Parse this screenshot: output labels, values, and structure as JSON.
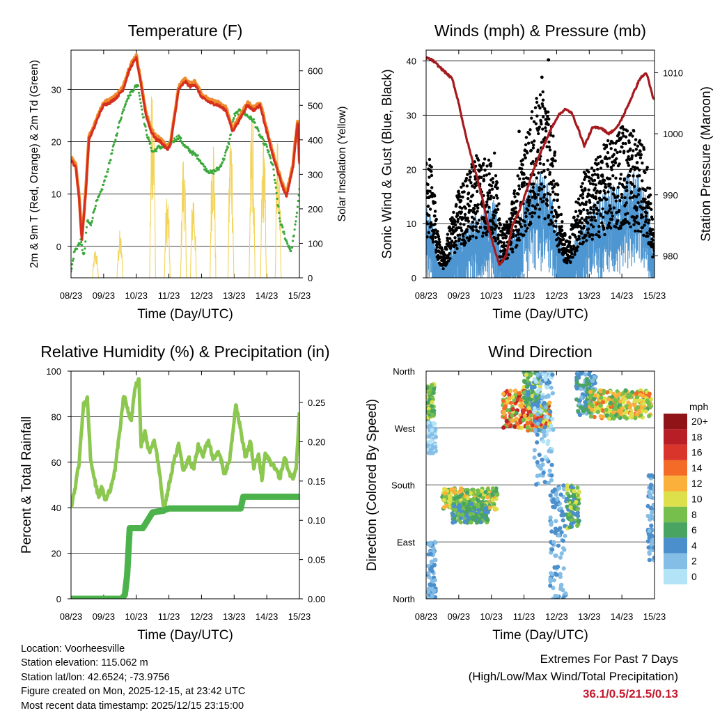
{
  "colors": {
    "temp2m": "#d62f1f",
    "temp9m": "#f08a2a",
    "dewpoint": "#3aa83a",
    "insolation": "#f3d45a",
    "wind": "#000000",
    "gust_sonic": "#4d96d1",
    "pressure": "#a61a1f",
    "rh": "#8cc850",
    "precip": "#4cb34c",
    "extreme_values": "#c3182d",
    "speed_bins": [
      "#b3e3f7",
      "#84bde6",
      "#4b8fcc",
      "#4aa461",
      "#77bf4d",
      "#dde04a",
      "#fbb03b",
      "#f36b27",
      "#d9352a",
      "#b81e26",
      "#8f1317"
    ]
  },
  "time_ticks": [
    "08/23",
    "09/23",
    "10/23",
    "11/23",
    "12/23",
    "13/23",
    "14/23",
    "15/23"
  ],
  "chart_data": [
    {
      "id": "temperature",
      "type": "line",
      "title": "Temperature (F)",
      "xlabel": "Time (Day/UTC)",
      "ylabel": "2m & 9m T (Red, Orange) & 2m Td (Green)",
      "ylabel_right": "Solar Insolation (Yellow)",
      "xlim": [
        0,
        7
      ],
      "ylim": [
        -6,
        37.5
      ],
      "ylim_right": [
        0,
        660
      ],
      "yticks": [
        "0",
        "10",
        "20",
        "30"
      ],
      "yticks_right": [
        "0",
        "100",
        "200",
        "300",
        "400",
        "500",
        "600"
      ],
      "series": [
        {
          "name": "2m T",
          "axis": "left",
          "color_key": "temp2m",
          "width": 3.2,
          "x": [
            0,
            0.15,
            0.25,
            0.33,
            0.45,
            0.55,
            0.7,
            0.85,
            1.0,
            1.2,
            1.4,
            1.6,
            1.75,
            1.85,
            2.0,
            2.1,
            2.3,
            2.45,
            2.6,
            2.75,
            2.95,
            3.05,
            3.3,
            3.5,
            3.65,
            3.8,
            4.0,
            4.25,
            4.5,
            4.75,
            4.95,
            5.15,
            5.4,
            5.6,
            5.8,
            5.95,
            6.2,
            6.45,
            6.6,
            6.8,
            6.95,
            7.0
          ],
          "y": [
            16.5,
            15,
            9,
            1,
            10,
            20.5,
            22.5,
            25,
            27,
            27.5,
            28.5,
            30,
            33,
            34.5,
            36,
            32.5,
            25,
            22,
            20.5,
            20,
            18.5,
            19.5,
            30,
            31.5,
            30.5,
            31,
            28.5,
            27.5,
            27,
            26,
            22,
            24,
            27,
            26,
            27,
            23,
            17,
            12,
            9.5,
            15,
            24,
            16
          ]
        },
        {
          "name": "9m T",
          "axis": "left",
          "color_key": "temp9m",
          "width": 1.2,
          "x": [
            0,
            0.15,
            0.25,
            0.33,
            0.45,
            0.55,
            0.7,
            0.85,
            1.0,
            1.2,
            1.4,
            1.6,
            1.75,
            1.85,
            2.0,
            2.1,
            2.3,
            2.45,
            2.6,
            2.75,
            2.95,
            3.05,
            3.3,
            3.5,
            3.65,
            3.8,
            4.0,
            4.25,
            4.5,
            4.75,
            4.95,
            5.15,
            5.4,
            5.6,
            5.8,
            5.95,
            6.2,
            6.45,
            6.6,
            6.8,
            6.95,
            7.0
          ],
          "y": [
            17,
            15.5,
            9.5,
            1.5,
            10.5,
            21,
            23,
            25.5,
            27.5,
            28,
            29,
            30.5,
            33.5,
            35,
            36.5,
            33,
            25.5,
            22.5,
            21,
            20.5,
            19,
            20,
            30.5,
            32,
            31,
            31.5,
            29,
            28,
            27.5,
            26.5,
            22.5,
            24.5,
            27.5,
            26.5,
            27.5,
            23.5,
            17.5,
            12.5,
            10,
            15.5,
            24.5,
            16.5
          ]
        },
        {
          "name": "2m Td",
          "axis": "left",
          "color_key": "dewpoint",
          "width": 2.5,
          "x": [
            0,
            0.1,
            0.2,
            0.3,
            0.4,
            0.5,
            0.6,
            0.75,
            0.9,
            1.1,
            1.3,
            1.5,
            1.7,
            1.9,
            2.05,
            2.15,
            2.3,
            2.5,
            2.7,
            2.9,
            3.1,
            3.3,
            3.5,
            3.7,
            3.9,
            4.1,
            4.3,
            4.55,
            4.7,
            4.85,
            5.0,
            5.2,
            5.4,
            5.6,
            5.8,
            6.0,
            6.2,
            6.4,
            6.6,
            6.75,
            6.9,
            7.0
          ],
          "y": [
            -5,
            -1,
            0,
            1,
            -2,
            5,
            4,
            8,
            10,
            14,
            19,
            24,
            28,
            30,
            31,
            27,
            22,
            18,
            19,
            19,
            20,
            21,
            19,
            18,
            17,
            15,
            14,
            15,
            17,
            20,
            25,
            26,
            25,
            24,
            21,
            19,
            15,
            5,
            1,
            -1,
            5,
            11
          ]
        },
        {
          "name": "Solar Insolation",
          "axis": "right",
          "color_key": "insolation",
          "width": 1.1,
          "kind": "spikes",
          "peaks": [
            [
              0.75,
              90
            ],
            [
              1.5,
              140
            ],
            [
              2.5,
              660
            ],
            [
              2.95,
              260
            ],
            [
              3.45,
              390
            ],
            [
              3.75,
              280
            ],
            [
              4.35,
              460
            ],
            [
              4.9,
              470
            ],
            [
              5.55,
              500
            ],
            [
              5.9,
              440
            ],
            [
              6.35,
              470
            ]
          ]
        }
      ]
    },
    {
      "id": "winds",
      "type": "scatter",
      "title": "Winds (mph) & Pressure (mb)",
      "xlabel": "Time (Day/UTC)",
      "ylabel": "Sonic Wind & Gust (Blue, Black)",
      "ylabel_right": "Station Pressure (Maroon)",
      "xlim": [
        0,
        7
      ],
      "ylim": [
        0,
        42
      ],
      "ylim_right": [
        976.4,
        1013.7
      ],
      "yticks": [
        "0",
        "10",
        "20",
        "30",
        "40"
      ],
      "yticks_right": [
        "980",
        "990",
        "1000",
        "1010"
      ],
      "sonic_wind_envelope": {
        "x": [
          0,
          0.2,
          0.35,
          0.55,
          0.75,
          1.0,
          1.3,
          1.6,
          1.9,
          2.1,
          2.3,
          2.5,
          2.75,
          3.0,
          3.25,
          3.5,
          3.7,
          3.9,
          4.1,
          4.35,
          4.6,
          4.85,
          5.1,
          5.4,
          5.7,
          5.95,
          6.2,
          6.45,
          6.7,
          6.85,
          7.0
        ],
        "y": [
          12,
          9,
          3,
          2,
          5,
          7,
          9,
          11,
          12,
          13,
          4,
          5,
          8,
          12,
          16,
          17,
          16,
          12,
          6,
          3,
          7,
          10,
          12,
          14,
          15,
          16,
          17,
          18,
          14,
          10,
          4
        ]
      },
      "gust_envelope": {
        "x": [
          0,
          0.2,
          0.35,
          0.55,
          0.75,
          1.0,
          1.3,
          1.6,
          1.9,
          2.1,
          2.3,
          2.5,
          2.75,
          3.0,
          3.25,
          3.5,
          3.7,
          3.9,
          4.1,
          4.35,
          4.6,
          4.85,
          5.1,
          5.4,
          5.7,
          5.95,
          6.2,
          6.45,
          6.7,
          6.85,
          7.0
        ],
        "y": [
          22,
          18,
          8,
          4,
          10,
          15,
          18,
          22,
          20,
          21,
          8,
          10,
          16,
          22,
          28,
          32,
          30,
          24,
          12,
          6,
          13,
          18,
          19,
          22,
          24,
          26,
          26,
          24,
          22,
          16,
          6
        ]
      },
      "max_gust_points": [
        [
          3.75,
          40.2
        ],
        [
          3.55,
          37
        ],
        [
          2.85,
          27
        ]
      ],
      "pressure": {
        "x": [
          0,
          0.2,
          0.4,
          0.6,
          0.8,
          1.0,
          1.2,
          1.45,
          1.7,
          1.9,
          2.1,
          2.25,
          2.45,
          2.65,
          2.9,
          3.1,
          3.35,
          3.6,
          3.85,
          4.05,
          4.25,
          4.45,
          4.65,
          4.85,
          5.1,
          5.35,
          5.6,
          5.85,
          6.05,
          6.3,
          6.55,
          6.75,
          6.85,
          6.95,
          7.0
        ],
        "y": [
          1012.5,
          1012,
          1011,
          1010,
          1009,
          1005,
          1000,
          995,
          990,
          985,
          981,
          978.5,
          980,
          985,
          988,
          991,
          995,
          998,
          1001,
          1003,
          1004,
          1003.5,
          1001,
          998,
          1001,
          1001,
          1000,
          1001,
          1003,
          1006,
          1009,
          1010,
          1008,
          1006,
          1005.5
        ]
      }
    },
    {
      "id": "humidity",
      "type": "line",
      "title": "Relative Humidity (%) & Precipitation (in)",
      "xlabel": "Time (Day/UTC)",
      "ylabel": "Percent & Total Rainfall",
      "xlim": [
        0,
        7
      ],
      "ylim": [
        0,
        100
      ],
      "ylim_right": [
        0,
        0.29
      ],
      "yticks": [
        "0",
        "20",
        "40",
        "60",
        "80",
        "100"
      ],
      "yticks_right": [
        "0.00",
        "0.05",
        "0.10",
        "0.15",
        "0.20",
        "0.25"
      ],
      "series": [
        {
          "name": "Relative Humidity",
          "axis": "left",
          "color_key": "rh",
          "width": 5,
          "x": [
            0,
            0.12,
            0.25,
            0.38,
            0.5,
            0.6,
            0.75,
            0.85,
            0.95,
            1.05,
            1.2,
            1.35,
            1.5,
            1.62,
            1.75,
            1.85,
            1.95,
            2.08,
            2.15,
            2.25,
            2.4,
            2.55,
            2.7,
            2.85,
            3.0,
            3.15,
            3.3,
            3.45,
            3.6,
            3.75,
            3.9,
            4.05,
            4.2,
            4.35,
            4.55,
            4.7,
            4.85,
            4.95,
            5.05,
            5.2,
            5.35,
            5.5,
            5.6,
            5.75,
            5.85,
            5.95,
            6.1,
            6.25,
            6.4,
            6.55,
            6.7,
            6.8,
            6.9,
            7.0
          ],
          "y": [
            40,
            48,
            60,
            85,
            88,
            62,
            50,
            45,
            49,
            43,
            48,
            57,
            74,
            90,
            82,
            78,
            92,
            97,
            66,
            74,
            64,
            70,
            57,
            38,
            50,
            60,
            68,
            56,
            62,
            57,
            67,
            63,
            70,
            62,
            64,
            55,
            60,
            72,
            86,
            74,
            62,
            69,
            58,
            63,
            52,
            64,
            60,
            58,
            53,
            62,
            55,
            53,
            58,
            82
          ]
        },
        {
          "name": "Total Precipitation",
          "axis": "right",
          "color_key": "precip",
          "width": 9,
          "step": true,
          "x": [
            0,
            1.55,
            1.65,
            1.72,
            1.8,
            2.0,
            2.2,
            2.35,
            2.5,
            2.8,
            3.0,
            3.3,
            4.1,
            5.2,
            5.28,
            6.2,
            7.0
          ],
          "y": [
            0,
            0,
            0.005,
            0.03,
            0.09,
            0.09,
            0.09,
            0.1,
            0.11,
            0.112,
            0.115,
            0.115,
            0.115,
            0.115,
            0.13,
            0.13,
            0.13
          ]
        }
      ]
    },
    {
      "id": "direction",
      "type": "scatter",
      "title": "Wind Direction",
      "xlabel": "Time (Day/UTC)",
      "ylabel": "Direction (Colored By Speed)",
      "xlim": [
        0,
        7
      ],
      "ylim": [
        0,
        360
      ],
      "yticks": [
        "North",
        "East",
        "South",
        "West",
        "North"
      ],
      "clusters": [
        {
          "x": [
            0.0,
            0.25
          ],
          "y": [
            280,
            340
          ],
          "speed": [
            5,
            10
          ]
        },
        {
          "x": [
            0.05,
            0.3
          ],
          "y": [
            230,
            280
          ],
          "speed": [
            0,
            3
          ]
        },
        {
          "x": [
            0.05,
            0.3
          ],
          "y": [
            0,
            90
          ],
          "speed": [
            1,
            4
          ]
        },
        {
          "x": [
            0.5,
            2.2
          ],
          "y": [
            140,
            175
          ],
          "speed": [
            5,
            13
          ]
        },
        {
          "x": [
            0.8,
            1.9
          ],
          "y": [
            120,
            150
          ],
          "speed": [
            3,
            9
          ]
        },
        {
          "x": [
            2.35,
            3.1
          ],
          "y": [
            270,
            330
          ],
          "speed": [
            6,
            18
          ]
        },
        {
          "x": [
            3.1,
            3.8
          ],
          "y": [
            265,
            310
          ],
          "speed": [
            7,
            17
          ]
        },
        {
          "x": [
            3.0,
            3.5
          ],
          "y": [
            300,
            360
          ],
          "speed": [
            3,
            10
          ]
        },
        {
          "x": [
            3.3,
            3.9
          ],
          "y": [
            180,
            360
          ],
          "speed": [
            0,
            4
          ]
        },
        {
          "x": [
            3.8,
            4.3
          ],
          "y": [
            0,
            180
          ],
          "speed": [
            1,
            5
          ]
        },
        {
          "x": [
            4.3,
            4.7
          ],
          "y": [
            110,
            180
          ],
          "speed": [
            4,
            10
          ]
        },
        {
          "x": [
            4.6,
            5.2
          ],
          "y": [
            290,
            360
          ],
          "speed": [
            2,
            7
          ]
        },
        {
          "x": [
            5.0,
            6.9
          ],
          "y": [
            285,
            330
          ],
          "speed": [
            6,
            14
          ]
        },
        {
          "x": [
            6.8,
            7.0
          ],
          "y": [
            60,
            200
          ],
          "speed": [
            1,
            5
          ]
        }
      ],
      "colorbar": {
        "title": "mph",
        "labels": [
          "20+",
          "18",
          "16",
          "14",
          "12",
          "10",
          "8",
          "6",
          "4",
          "2",
          "0"
        ]
      }
    }
  ],
  "info": {
    "location": "Location: Voorheesville",
    "elevation": "Station elevation: 115.062 m",
    "latlon": "Station lat/lon: 42.6524; -73.9756",
    "created": "Figure created on Mon, 2025-12-15, at 23:42 UTC",
    "recent": "Most recent data timestamp: 2025/12/15 23:15:00"
  },
  "extremes": {
    "title": "Extremes For Past 7 Days",
    "subtitle": "(High/Low/Max Wind/Total Precipitation)",
    "values": "36.1/0.5/21.5/0.13"
  }
}
